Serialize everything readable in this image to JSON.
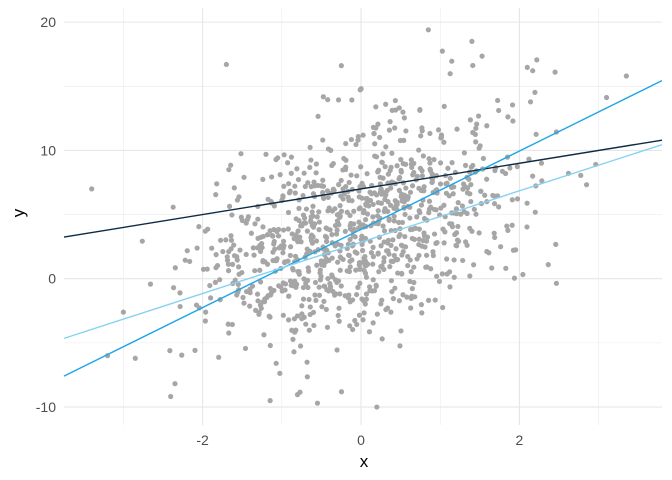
{
  "chart_data": {
    "type": "scatter",
    "title": "",
    "xlabel": "x",
    "ylabel": "y",
    "xlim": [
      -3.75,
      3.8
    ],
    "ylim": [
      -11.4,
      21.1
    ],
    "x_ticks": [
      -2,
      0,
      2
    ],
    "x_tick_labels": [
      "-2",
      "0",
      "2"
    ],
    "y_ticks": [
      -10,
      0,
      10,
      20
    ],
    "y_tick_labels": [
      "-10",
      "0",
      "10",
      "20"
    ],
    "grid": true,
    "legend": "none",
    "point_color": "#a6a6a6",
    "point_count": 1000,
    "point_distribution": {
      "x_mean": 0,
      "x_sd": 1,
      "y_intercept": 4,
      "y_slope": 2,
      "y_residual_sd": 4
    },
    "outlier_points": [
      {
        "x": -3.4,
        "y": 7.0
      },
      {
        "x": -3.2,
        "y": -6.0
      },
      {
        "x": -2.85,
        "y": -6.2
      },
      {
        "x": 3.35,
        "y": 15.8
      },
      {
        "x": 0.85,
        "y": 19.4
      },
      {
        "x": 0.2,
        "y": -10.0
      },
      {
        "x": -0.55,
        "y": -9.7
      },
      {
        "x": -1.7,
        "y": 16.7
      },
      {
        "x": 1.4,
        "y": 18.5
      },
      {
        "x": 2.45,
        "y": 16.1
      }
    ],
    "lines": [
      {
        "color": "#0d2b45",
        "intercept": 7.0,
        "slope": 1.0
      },
      {
        "color": "#1fa7e6",
        "intercept": 3.85,
        "slope": 3.05
      },
      {
        "color": "#86d2f5",
        "intercept": 2.85,
        "slope": 2.0
      }
    ]
  }
}
